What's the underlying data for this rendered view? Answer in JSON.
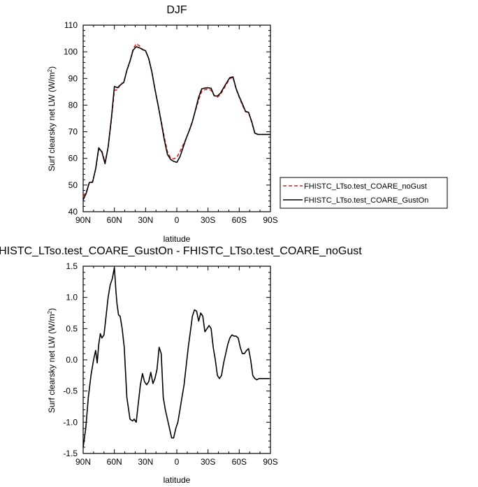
{
  "chart_data": [
    {
      "type": "line",
      "title": "DJF",
      "xlabel": "latitude",
      "ylabel": "Surf clearsky net LW (W/m",
      "ylabel_sup": "2",
      "ylabel_end": ")",
      "xlim": [
        90,
        -90
      ],
      "ylim": [
        40,
        110
      ],
      "x_ticks": [
        90,
        60,
        30,
        0,
        -30,
        -60,
        -90
      ],
      "x_tick_labels": [
        "90N",
        "60N",
        "30N",
        "0",
        "30S",
        "60S",
        "90S"
      ],
      "y_ticks": [
        40,
        50,
        60,
        70,
        80,
        90,
        100,
        110
      ],
      "y_tick_labels": [
        "40",
        "50",
        "60",
        "70",
        "80",
        "90",
        "100",
        "110"
      ],
      "legend_position": "right",
      "series": [
        {
          "name": "FHISTC_LTso.test_COARE_noGust",
          "color": "#e02020",
          "dash": "dashed",
          "x": [
            90,
            87,
            84,
            81,
            78,
            75,
            72,
            69,
            66,
            63,
            60,
            57,
            54,
            51,
            48,
            45,
            42,
            39,
            36,
            33,
            30,
            27,
            24,
            21,
            18,
            15,
            12,
            9,
            6,
            3,
            0,
            -3,
            -6,
            -9,
            -12,
            -15,
            -18,
            -21,
            -24,
            -27,
            -30,
            -33,
            -36,
            -39,
            -42,
            -45,
            -48,
            -51,
            -54,
            -57,
            -60,
            -63,
            -66,
            -69,
            -72,
            -75,
            -78,
            -81,
            -84,
            -87,
            -90
          ],
          "y": [
            45.8,
            47.5,
            51,
            51.2,
            56,
            63.6,
            62.7,
            58.5,
            64,
            74,
            85.5,
            85.8,
            88,
            88.5,
            93,
            96.4,
            101,
            103,
            102.3,
            100.8,
            100.3,
            97.5,
            92.5,
            86,
            80,
            74,
            68,
            62.5,
            60.2,
            59.8,
            60.4,
            62.5,
            65,
            67.5,
            70.5,
            74,
            78,
            82,
            85.2,
            85.8,
            86,
            85.6,
            83.5,
            83,
            84,
            86,
            88,
            90,
            90.3,
            86,
            83,
            80,
            77.5,
            77.2,
            73.5,
            69.3,
            69,
            69,
            69,
            69,
            69
          ]
        },
        {
          "name": "FHISTC_LTso.test_COARE_GustOn",
          "color": "#000000",
          "dash": "solid",
          "x": [
            90,
            87,
            84,
            81,
            78,
            75,
            72,
            69,
            66,
            63,
            60,
            57,
            54,
            51,
            48,
            45,
            42,
            39,
            36,
            33,
            30,
            27,
            24,
            21,
            18,
            15,
            12,
            9,
            6,
            3,
            0,
            -3,
            -6,
            -9,
            -12,
            -15,
            -18,
            -21,
            -24,
            -27,
            -30,
            -33,
            -36,
            -39,
            -42,
            -45,
            -48,
            -51,
            -54,
            -57,
            -60,
            -63,
            -66,
            -69,
            -72,
            -75,
            -78,
            -81,
            -84,
            -87,
            -90
          ],
          "y": [
            44.4,
            47,
            51,
            51,
            56.1,
            64,
            62.4,
            58,
            64.2,
            74.5,
            87,
            86.5,
            87.6,
            88.5,
            93,
            96.5,
            100.6,
            101.9,
            101.5,
            100.9,
            100.4,
            97.5,
            92.5,
            86,
            80,
            73.6,
            67,
            61.5,
            59.6,
            58.9,
            58.5,
            60.6,
            64,
            67.5,
            70.5,
            73.8,
            78.3,
            83,
            86.1,
            86.4,
            86.5,
            86.3,
            83.5,
            83.4,
            84.5,
            86.5,
            88.5,
            90.3,
            90.6,
            86.2,
            83.2,
            80.5,
            77.7,
            77.3,
            73.8,
            69.5,
            69,
            69,
            69,
            69,
            69
          ]
        }
      ]
    },
    {
      "type": "line",
      "title": "FHISTC_LTso.test_COARE_GustOn - FHISTC_LTso.test_COARE_noGust",
      "xlabel": "latitude",
      "ylabel": "Surf clearsky net LW (W/m",
      "ylabel_sup": "2",
      "ylabel_end": ")",
      "xlim": [
        90,
        -90
      ],
      "ylim": [
        -1.5,
        1.5
      ],
      "x_ticks": [
        90,
        60,
        30,
        0,
        -30,
        -60,
        -90
      ],
      "x_tick_labels": [
        "90N",
        "60N",
        "30N",
        "0",
        "30S",
        "60S",
        "90S"
      ],
      "y_ticks": [
        -1.5,
        -1.0,
        -0.5,
        0.0,
        0.5,
        1.0,
        1.5
      ],
      "y_tick_labels": [
        "-1.5",
        "-1.0",
        "-0.5",
        "0.0",
        "0.5",
        "1.0",
        "1.5"
      ],
      "series": [
        {
          "color": "#000000",
          "dash": "solid",
          "x": [
            90,
            87.5,
            85,
            82.5,
            80,
            78,
            76.5,
            75,
            73.5,
            72,
            70,
            68,
            66,
            64,
            62,
            60,
            58.5,
            57.5,
            56,
            54.5,
            52.5,
            50.5,
            48,
            45,
            42.5,
            41,
            39,
            37,
            35,
            33,
            31,
            29,
            27,
            25,
            23,
            21,
            19,
            17,
            15,
            13,
            11,
            9,
            7,
            5,
            3,
            1,
            -1,
            -3,
            -5,
            -7,
            -9,
            -11,
            -13,
            -15,
            -17,
            -19,
            -21,
            -23,
            -25,
            -27,
            -29,
            -31,
            -33,
            -35,
            -37,
            -39,
            -41,
            -43,
            -45,
            -47,
            -49,
            -51,
            -53,
            -55,
            -57,
            -59,
            -61,
            -63,
            -65,
            -67,
            -69,
            -71,
            -73,
            -75,
            -77,
            -79,
            -81,
            -83,
            -85,
            -87,
            -89
          ],
          "y": [
            -1.4,
            -1.1,
            -0.6,
            -0.25,
            0.0,
            0.15,
            -0.05,
            0.25,
            0.42,
            0.35,
            0.4,
            0.7,
            1.0,
            1.2,
            1.3,
            1.48,
            1.1,
            0.9,
            0.72,
            0.7,
            0.5,
            0.2,
            -0.6,
            -0.95,
            -0.98,
            -0.95,
            -1.0,
            -0.7,
            -0.4,
            -0.22,
            -0.35,
            -0.4,
            -0.35,
            -0.2,
            -0.38,
            -0.3,
            -0.15,
            0.2,
            0.1,
            -0.6,
            -0.8,
            -0.95,
            -1.1,
            -1.25,
            -1.25,
            -1.1,
            -1.0,
            -0.8,
            -0.6,
            -0.4,
            -0.1,
            0.2,
            0.45,
            0.7,
            0.8,
            0.78,
            0.62,
            0.75,
            0.7,
            0.45,
            0.5,
            0.55,
            0.5,
            0.2,
            0.0,
            -0.25,
            -0.3,
            -0.25,
            -0.05,
            0.1,
            0.25,
            0.35,
            0.4,
            0.38,
            0.38,
            0.35,
            0.2,
            0.1,
            0.1,
            0.15,
            0.18,
            0.0,
            -0.25,
            -0.3,
            -0.32,
            -0.3,
            -0.3,
            -0.3,
            -0.3,
            -0.3,
            -0.3
          ]
        }
      ]
    }
  ]
}
